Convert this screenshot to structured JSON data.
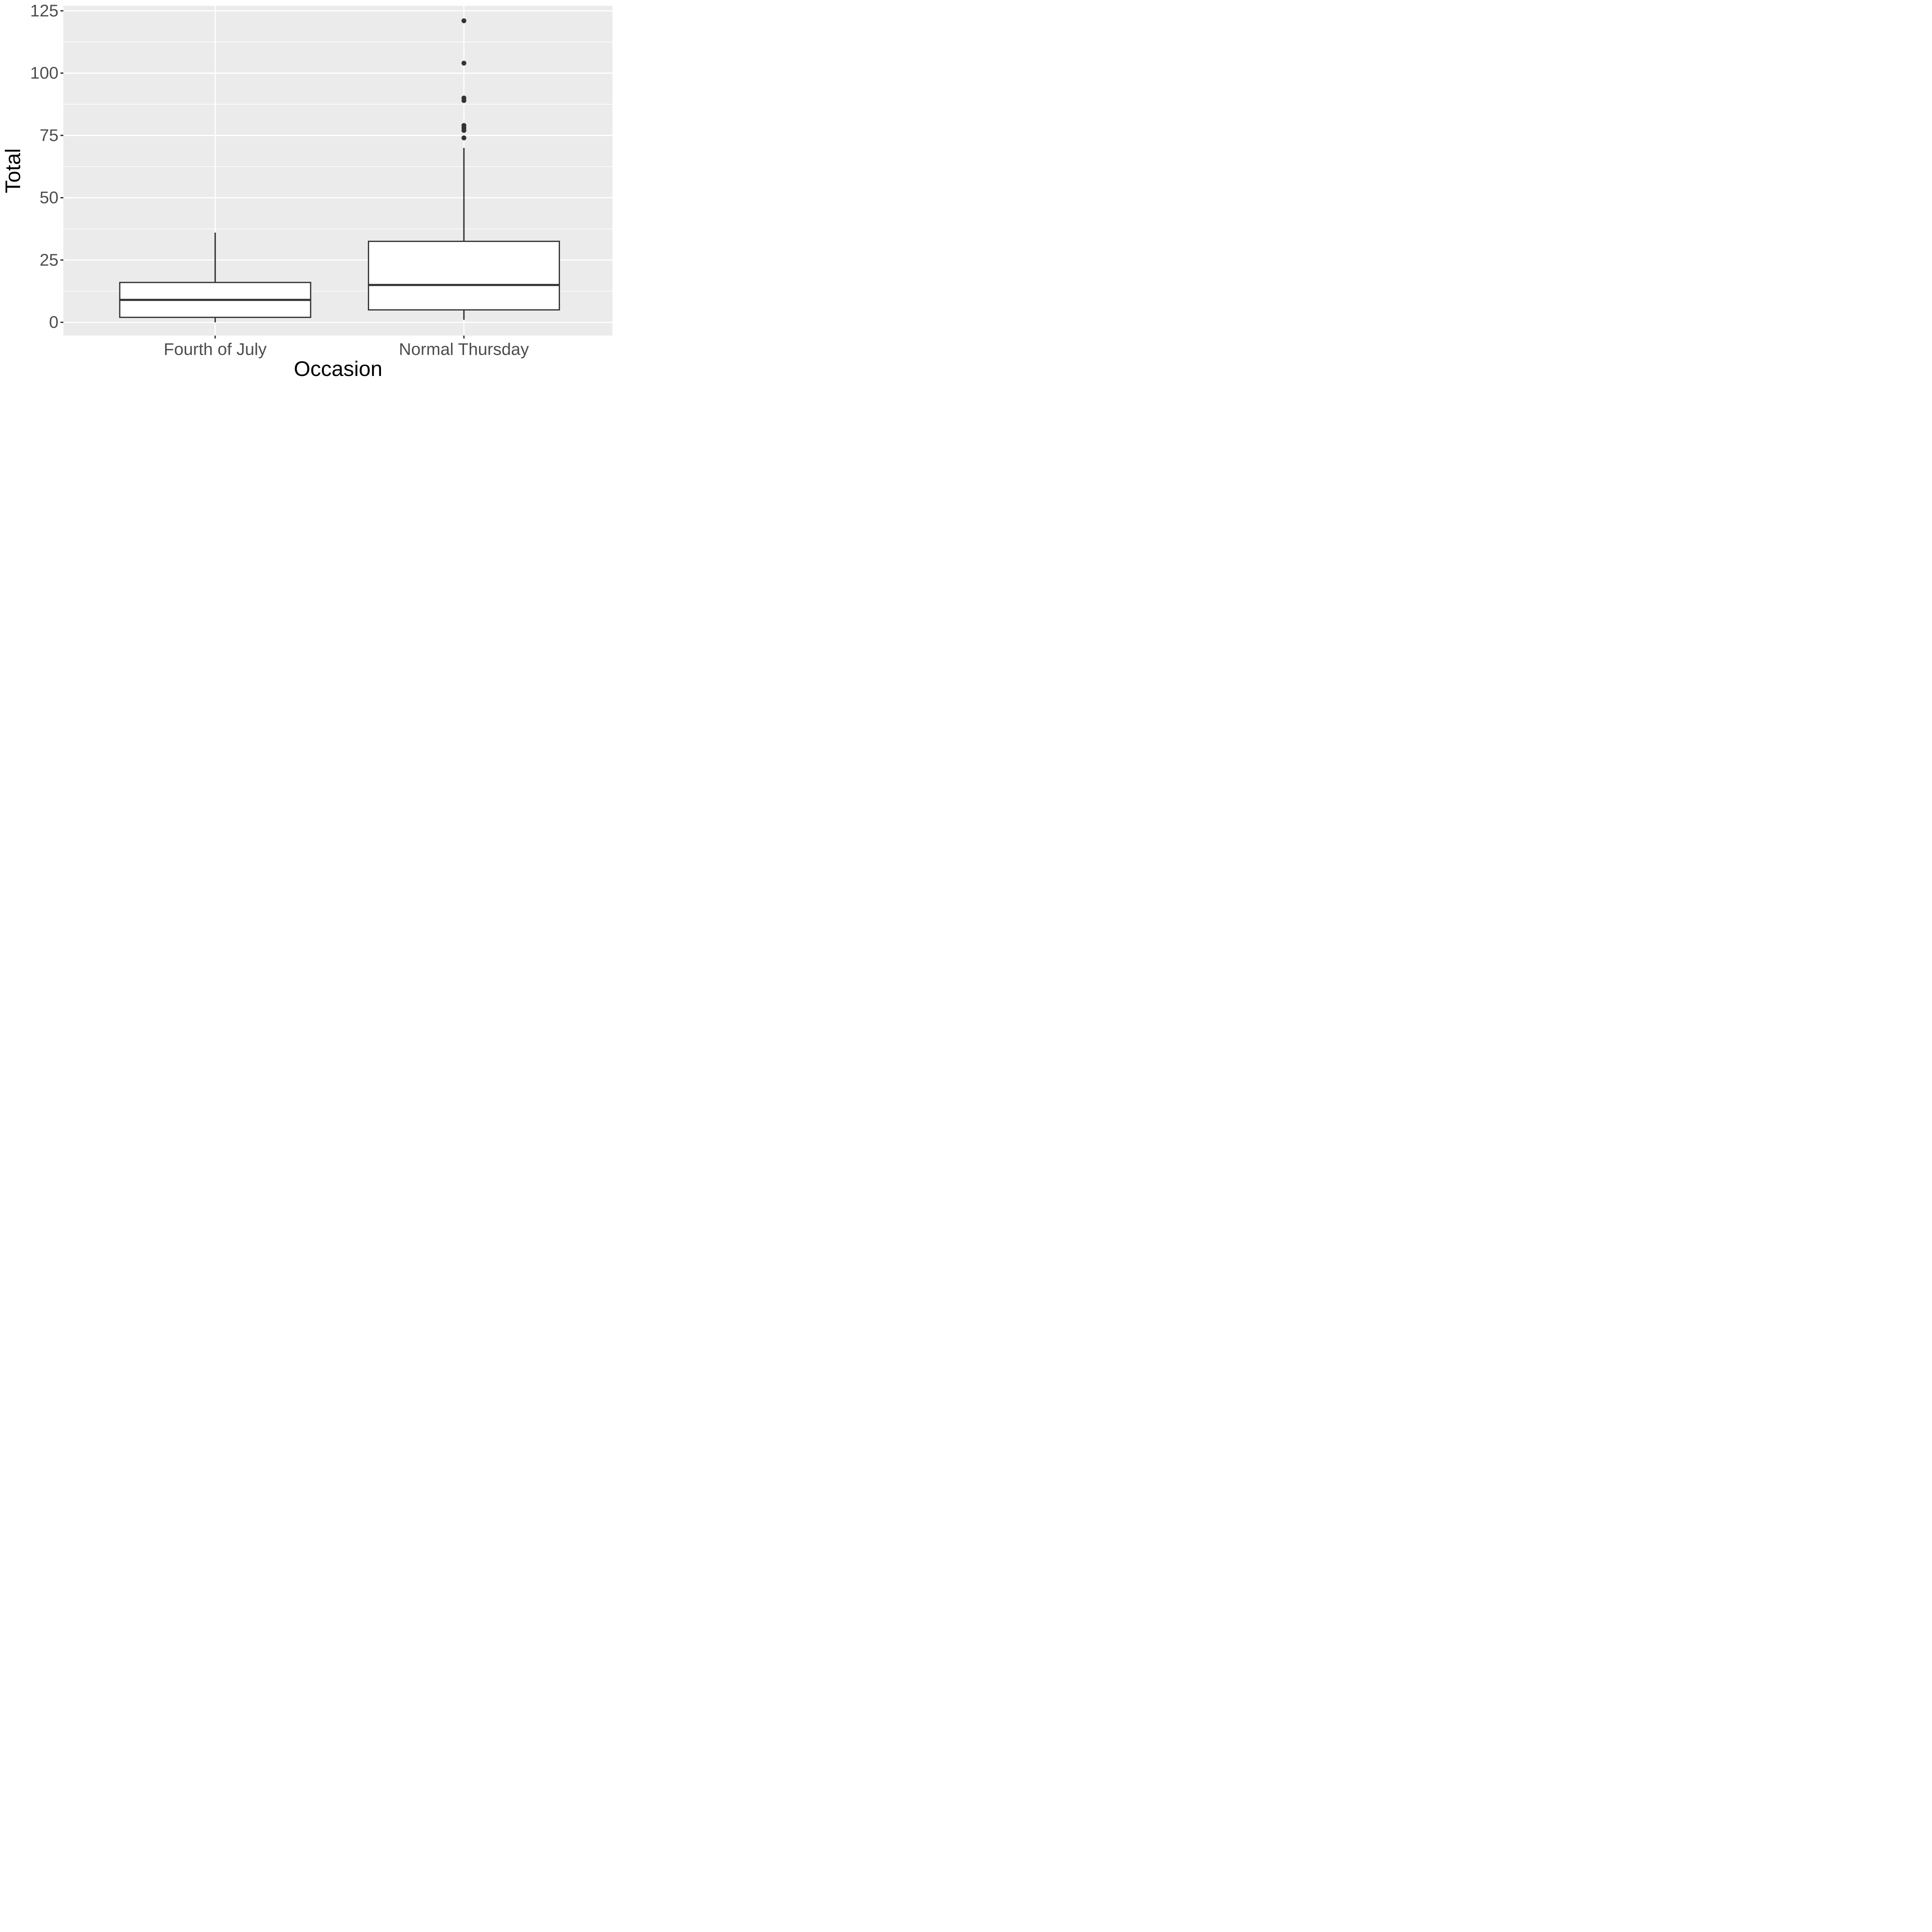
{
  "figure": {
    "background_color": "#FFFFFF",
    "panel_background_color": "#EBEBEB",
    "gridline_color": "#FFFFFF",
    "box_outline_color": "#333333",
    "box_fill_color": "#FFFFFF",
    "outlier_point_color": "#333333",
    "tick_mark_color": "#333333",
    "axis_text_color": "#4D4D4D",
    "axis_title_color": "#000000"
  },
  "chart_data": {
    "type": "boxplot",
    "title": "",
    "xlabel": "Occasion",
    "ylabel": "Total",
    "categories": [
      "Fourth of July",
      "Normal Thursday"
    ],
    "y_ticks": [
      0,
      25,
      50,
      75,
      100,
      125
    ],
    "y_minor_gridlines": [
      12.5,
      37.5,
      62.5,
      87.5,
      112.5
    ],
    "ylim": [
      -5.3,
      127
    ],
    "grid": "white major and minor horizontal gridlines plus one vertical gridline per category on grey panel",
    "legend": "none",
    "series": [
      {
        "name": "Fourth of July",
        "whisker_low": 0,
        "q1": 2,
        "median": 9,
        "q3": 16,
        "whisker_high": 36,
        "outliers": []
      },
      {
        "name": "Normal Thursday",
        "whisker_low": 1,
        "q1": 5,
        "median": 15,
        "q3": 32.5,
        "whisker_high": 70,
        "outliers": [
          74,
          77,
          78,
          79,
          89,
          90,
          104,
          121
        ]
      }
    ]
  }
}
